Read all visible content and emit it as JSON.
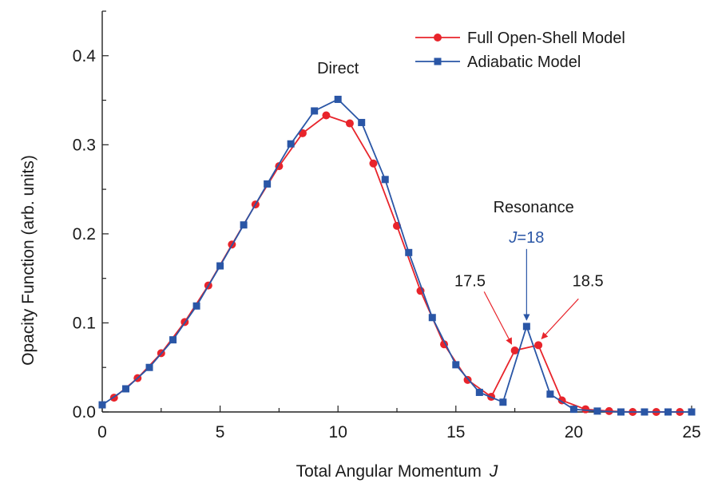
{
  "chart_data": {
    "type": "line",
    "title": "",
    "xlabel": "Total Angular Momentum",
    "xlabel_var": "J",
    "ylabel": "Opacity Function (arb. units)",
    "xlim": [
      0,
      25
    ],
    "ylim": [
      0,
      0.45
    ],
    "xticks": [
      0,
      5,
      10,
      15,
      20,
      25
    ],
    "yticks": [
      0.0,
      0.1,
      0.2,
      0.3,
      0.4
    ],
    "xtick_labels": [
      "0",
      "5",
      "10",
      "15",
      "20",
      "25"
    ],
    "ytick_labels": [
      "0.0",
      "0.1",
      "0.2",
      "0.3",
      "0.4"
    ],
    "grid": false,
    "legend_position": "top-right",
    "series": [
      {
        "name": "Full Open-Shell Model",
        "color": "#e8242b",
        "marker": "circle",
        "x": [
          0.5,
          1.5,
          2.5,
          3.5,
          4.5,
          5.5,
          6.5,
          7.5,
          8.5,
          9.5,
          10.5,
          11.5,
          12.5,
          13.5,
          14.5,
          15.5,
          16.5,
          17.5,
          18.5,
          19.5,
          20.5,
          21.5,
          22.5,
          23.5,
          24.5
        ],
        "y": [
          0.016,
          0.038,
          0.066,
          0.101,
          0.142,
          0.188,
          0.233,
          0.276,
          0.313,
          0.333,
          0.324,
          0.279,
          0.209,
          0.136,
          0.076,
          0.036,
          0.017,
          0.069,
          0.075,
          0.013,
          0.003,
          0.001,
          0.0,
          0.0,
          0.0
        ]
      },
      {
        "name": "Adiabatic Model",
        "color": "#2a56a6",
        "marker": "square",
        "x": [
          0,
          1,
          2,
          3,
          4,
          5,
          6,
          7,
          8,
          9,
          10,
          11,
          12,
          13,
          14,
          15,
          16,
          17,
          18,
          19,
          20,
          21,
          22,
          23,
          24,
          25
        ],
        "y": [
          0.008,
          0.026,
          0.05,
          0.081,
          0.119,
          0.164,
          0.21,
          0.256,
          0.301,
          0.338,
          0.351,
          0.325,
          0.261,
          0.179,
          0.106,
          0.053,
          0.022,
          0.011,
          0.096,
          0.02,
          0.003,
          0.001,
          0.0,
          0.0,
          0.0,
          0.0
        ]
      }
    ],
    "annotations": {
      "direct": {
        "text": "Direct",
        "x": 10,
        "y": 0.38
      },
      "resonance": {
        "text": "Resonance",
        "x": 18.3,
        "y": 0.224
      },
      "j18": {
        "text_var": "J",
        "text_rest": "=18",
        "color": "#2a56a6",
        "x": 18,
        "y": 0.19
      },
      "j175": {
        "text": "17.5",
        "color": "#e8242b",
        "x": 15.6,
        "y": 0.141
      },
      "j185": {
        "text": "18.5",
        "color": "#e8242b",
        "x": 20.6,
        "y": 0.141
      }
    }
  }
}
